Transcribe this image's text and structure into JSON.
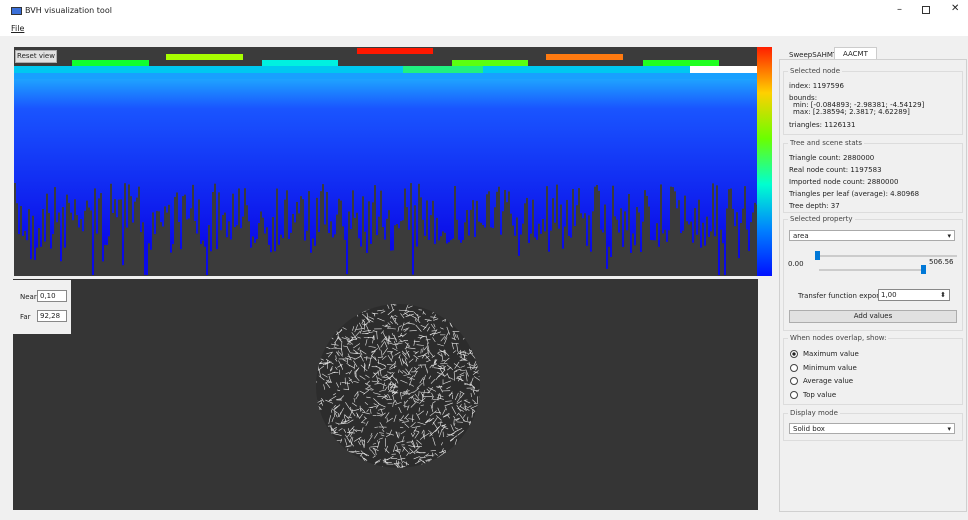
{
  "window": {
    "title": "BVH visualization tool"
  },
  "menu": {
    "file": "File"
  },
  "view": {
    "reset": "Reset view",
    "near_label": "Near",
    "near_value": "0,10",
    "far_label": "Far",
    "far_value": "92,28"
  },
  "tabs": [
    "SweepSAHMT",
    "AACMT"
  ],
  "selected_node": {
    "title": "Selected node",
    "index": "index: 1197596",
    "bounds": "bounds:",
    "min": "min: [-0.084893; -2.98381; -4.54129]",
    "max": "max: [2.38594; 2.3817; 4.62289]",
    "triangles": "triangles: 1126131"
  },
  "stats": {
    "title": "Tree and scene stats",
    "lines": [
      "Triangle count: 2880000",
      "Real node count: 1197583",
      "Imported node count: 2880000",
      "Triangles per leaf (average): 4.80968",
      "Tree depth: 37"
    ]
  },
  "property": {
    "title": "Selected property",
    "selected": "area",
    "min": "0.00",
    "max": "506.56",
    "exponent_label": "Transfer function exponent",
    "exponent_value": "1,00",
    "add": "Add values"
  },
  "overlap": {
    "title": "When nodes overlap, show:",
    "options": [
      "Maximum value",
      "Minimum value",
      "Average value",
      "Top value"
    ]
  },
  "display": {
    "title": "Display mode",
    "selected": "Solid box"
  }
}
